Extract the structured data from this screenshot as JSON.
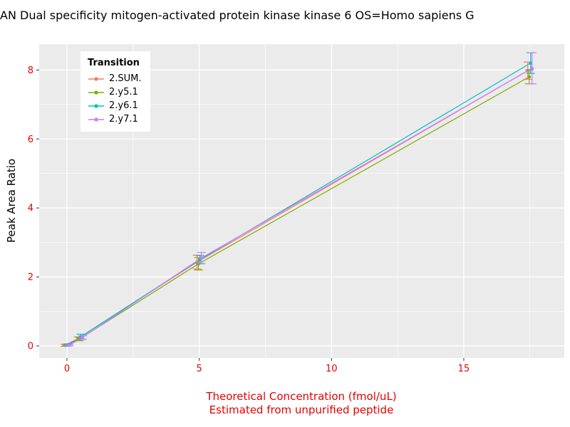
{
  "chart_data": {
    "type": "line",
    "title": "AN Dual specificity mitogen-activated protein kinase kinase 6 OS=Homo sapiens G",
    "xlabel": "Theoretical Concentration (fmol/uL)",
    "xlabel_line2": "Estimated from unpurified peptide",
    "ylabel": "Peak Area Ratio",
    "legend_title": "Transition",
    "legend_position": "top-left",
    "grid": "on",
    "panel_bg": "#EBEBEB",
    "axis_text_color": "#E60000",
    "x_ticks": [
      0,
      5,
      10,
      15
    ],
    "x_minor": [
      2.5,
      7.5,
      12.5,
      17.5
    ],
    "y_ticks": [
      0,
      2,
      4,
      6,
      8
    ],
    "y_minor": [
      1,
      3,
      5,
      7
    ],
    "xlim": [
      -1.05,
      18.8
    ],
    "ylim": [
      -0.35,
      8.75
    ],
    "x": [
      0,
      0.5,
      5,
      17.5
    ],
    "series": [
      {
        "name": "2.SUM.",
        "color": "#F8766D",
        "y": [
          0.02,
          0.21,
          2.43,
          7.98
        ],
        "yerr": [
          0.03,
          0.05,
          0.2,
          0.25
        ]
      },
      {
        "name": "2.y5.1",
        "color": "#7CAE00",
        "y": [
          0.02,
          0.2,
          2.38,
          7.8
        ],
        "yerr": [
          0.02,
          0.05,
          0.18,
          0.2
        ]
      },
      {
        "name": "2.y6.1",
        "color": "#00BFC4",
        "y": [
          0.03,
          0.27,
          2.5,
          8.2
        ],
        "yerr": [
          0.03,
          0.07,
          0.12,
          0.3
        ]
      },
      {
        "name": "2.y7.1",
        "color": "#C77CFF",
        "y": [
          0.02,
          0.24,
          2.55,
          8.05
        ],
        "yerr": [
          0.02,
          0.05,
          0.16,
          0.45
        ]
      }
    ]
  }
}
